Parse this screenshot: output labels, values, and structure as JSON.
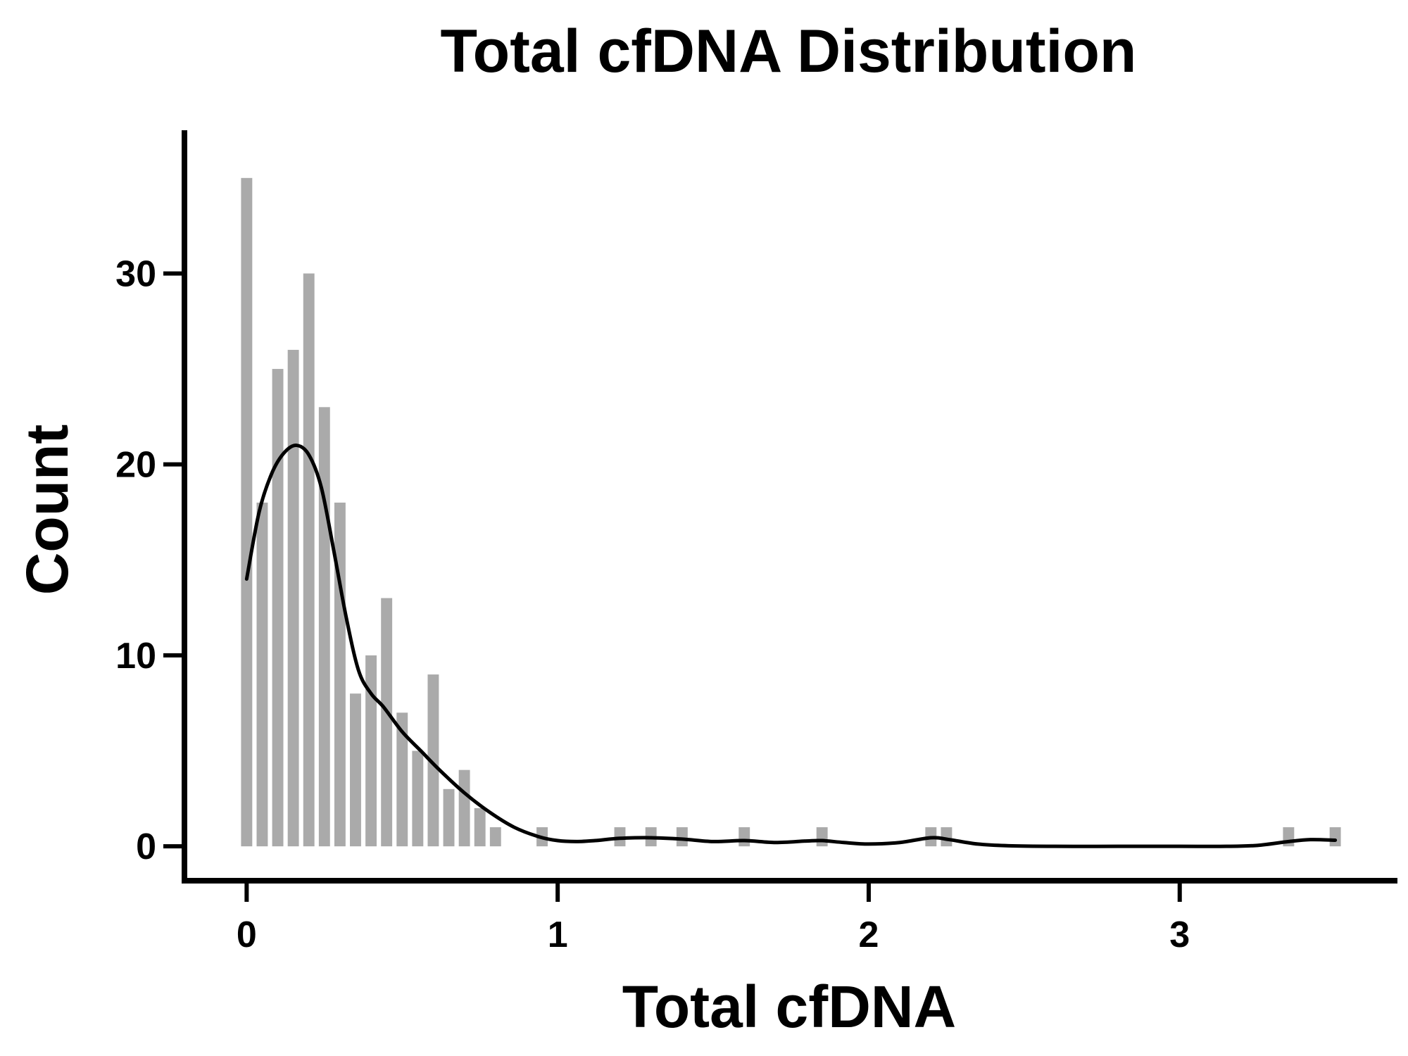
{
  "chart_data": {
    "type": "bar",
    "title": "Total cfDNA Distribution",
    "xlabel": "Total cfDNA",
    "ylabel": "Count",
    "xlim": [
      -0.2,
      3.7
    ],
    "ylim": [
      -1.8,
      37.5
    ],
    "x_ticks": [
      {
        "value": 0,
        "label": "0"
      },
      {
        "value": 1,
        "label": "1"
      },
      {
        "value": 2,
        "label": "2"
      },
      {
        "value": 3,
        "label": "3"
      }
    ],
    "y_ticks": [
      {
        "value": 0,
        "label": "0"
      },
      {
        "value": 10,
        "label": "10"
      },
      {
        "value": 20,
        "label": "20"
      },
      {
        "value": 30,
        "label": "30"
      }
    ],
    "grid": false,
    "bin_width": 0.05,
    "bar_color": "#aaaaaa",
    "line_color": "#000000",
    "bins": [
      {
        "x": 0.0,
        "count": 35
      },
      {
        "x": 0.05,
        "count": 18
      },
      {
        "x": 0.1,
        "count": 25
      },
      {
        "x": 0.15,
        "count": 26
      },
      {
        "x": 0.2,
        "count": 30
      },
      {
        "x": 0.25,
        "count": 23
      },
      {
        "x": 0.3,
        "count": 18
      },
      {
        "x": 0.35,
        "count": 8
      },
      {
        "x": 0.4,
        "count": 10
      },
      {
        "x": 0.45,
        "count": 13
      },
      {
        "x": 0.5,
        "count": 7
      },
      {
        "x": 0.55,
        "count": 5
      },
      {
        "x": 0.6,
        "count": 9
      },
      {
        "x": 0.65,
        "count": 3
      },
      {
        "x": 0.7,
        "count": 4
      },
      {
        "x": 0.75,
        "count": 2
      },
      {
        "x": 0.8,
        "count": 1
      },
      {
        "x": 0.95,
        "count": 1
      },
      {
        "x": 1.2,
        "count": 1
      },
      {
        "x": 1.3,
        "count": 1
      },
      {
        "x": 1.4,
        "count": 1
      },
      {
        "x": 1.6,
        "count": 1
      },
      {
        "x": 1.85,
        "count": 1
      },
      {
        "x": 2.2,
        "count": 1
      },
      {
        "x": 2.25,
        "count": 1
      },
      {
        "x": 3.35,
        "count": 1
      },
      {
        "x": 3.5,
        "count": 1
      }
    ],
    "density_curve": [
      [
        0.0,
        14.0
      ],
      [
        0.04,
        17.5
      ],
      [
        0.08,
        19.5
      ],
      [
        0.12,
        20.6
      ],
      [
        0.16,
        21.0
      ],
      [
        0.2,
        20.5
      ],
      [
        0.24,
        18.8
      ],
      [
        0.28,
        15.5
      ],
      [
        0.32,
        12.0
      ],
      [
        0.36,
        9.2
      ],
      [
        0.4,
        8.0
      ],
      [
        0.44,
        7.3
      ],
      [
        0.5,
        6.0
      ],
      [
        0.56,
        5.0
      ],
      [
        0.62,
        4.0
      ],
      [
        0.7,
        2.8
      ],
      [
        0.78,
        1.8
      ],
      [
        0.86,
        1.0
      ],
      [
        0.94,
        0.5
      ],
      [
        1.0,
        0.3
      ],
      [
        1.06,
        0.25
      ],
      [
        1.12,
        0.3
      ],
      [
        1.2,
        0.42
      ],
      [
        1.3,
        0.45
      ],
      [
        1.4,
        0.38
      ],
      [
        1.5,
        0.25
      ],
      [
        1.6,
        0.3
      ],
      [
        1.7,
        0.2
      ],
      [
        1.8,
        0.28
      ],
      [
        1.85,
        0.3
      ],
      [
        1.92,
        0.2
      ],
      [
        2.0,
        0.12
      ],
      [
        2.1,
        0.2
      ],
      [
        2.2,
        0.45
      ],
      [
        2.26,
        0.35
      ],
      [
        2.35,
        0.12
      ],
      [
        2.45,
        0.03
      ],
      [
        2.6,
        0.0
      ],
      [
        2.8,
        0.0
      ],
      [
        3.0,
        0.0
      ],
      [
        3.15,
        0.0
      ],
      [
        3.25,
        0.05
      ],
      [
        3.35,
        0.25
      ],
      [
        3.42,
        0.35
      ],
      [
        3.5,
        0.32
      ]
    ]
  }
}
